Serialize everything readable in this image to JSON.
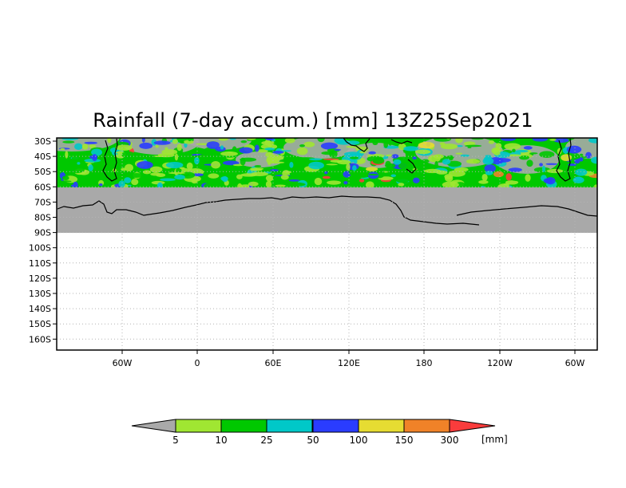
{
  "title": "Rainfall (7-day accum.) [mm] 13Z25Sep2021",
  "map": {
    "lat_labels": [
      "30S",
      "40S",
      "50S",
      "60S",
      "70S",
      "80S",
      "90S",
      "100S",
      "110S",
      "120S",
      "130S",
      "140S",
      "150S",
      "160S"
    ],
    "lon_labels": [
      "60W",
      "0",
      "60E",
      "120E",
      "180",
      "120W",
      "60W"
    ],
    "no_data_region": "south of 60S",
    "no_data_color": "#a9a9a9",
    "rain_colors": [
      "#a0e632",
      "#00c800",
      "#00c8c8",
      "#2a3cff",
      "#e6dc32",
      "#f08228",
      "#fa3c3c"
    ]
  },
  "colorbar": {
    "ticks": [
      "5",
      "10",
      "25",
      "50",
      "100",
      "150",
      "300"
    ],
    "unit": "[mm]",
    "colors": [
      "#a9a9a9",
      "#a0e632",
      "#00c800",
      "#00c8c8",
      "#2a3cff",
      "#e6dc32",
      "#f08228",
      "#fa3c3c"
    ]
  }
}
